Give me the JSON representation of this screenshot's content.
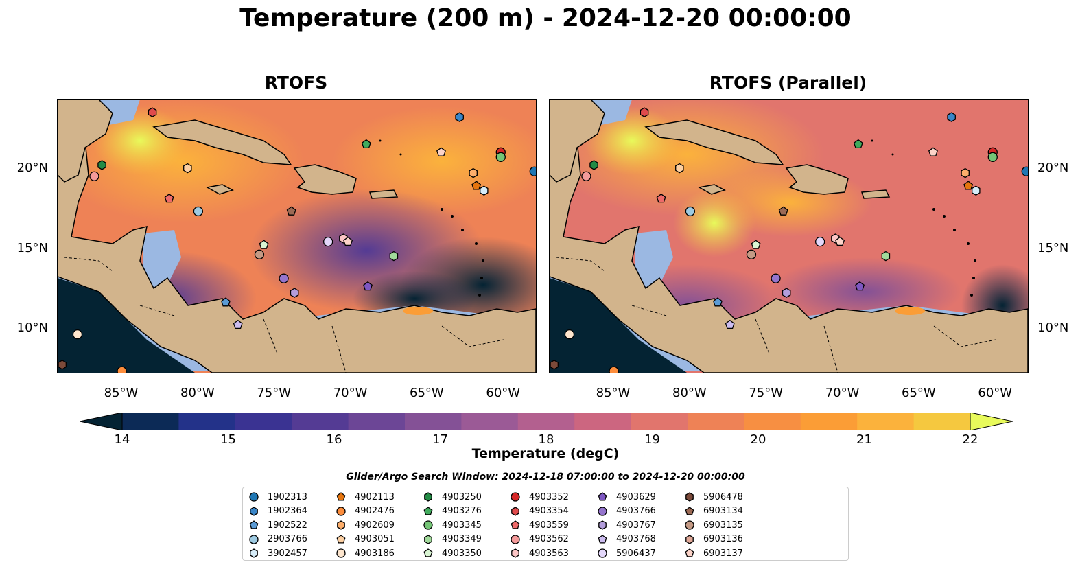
{
  "title": "Temperature (200 m) - 2024-12-20 00:00:00",
  "panels": [
    {
      "title": "RTOFS"
    },
    {
      "title": "RTOFS (Parallel)"
    }
  ],
  "map": {
    "lon_range": [
      -89.2,
      -57.9
    ],
    "lat_range": [
      7.3,
      24.4
    ],
    "lon_ticks": [
      "85°W",
      "80°W",
      "75°W",
      "70°W",
      "65°W",
      "60°W"
    ],
    "lon_tick_values": [
      -85,
      -80,
      -75,
      -70,
      -65,
      -60
    ],
    "lat_ticks": [
      "20°N",
      "15°N",
      "10°N"
    ],
    "lat_tick_values": [
      20,
      15,
      10
    ],
    "colors": {
      "land": "#d2b48c",
      "shelf": "#9bb8e2",
      "coast": "#000000"
    }
  },
  "colorbar": {
    "label": "Temperature (degC)",
    "min": 14,
    "max": 22,
    "ticks": [
      "14",
      "15",
      "16",
      "17",
      "18",
      "19",
      "20",
      "21",
      "22"
    ],
    "extend": "both",
    "colormap": [
      "#042333",
      "#0c2a56",
      "#233289",
      "#3a3392",
      "#543b94",
      "#6c4696",
      "#845196",
      "#9b5a96",
      "#b3608f",
      "#cc6680",
      "#e1756d",
      "#ee8256",
      "#f78f42",
      "#fb9d36",
      "#fbb23c",
      "#f5c83f",
      "#e8fa5b"
    ]
  },
  "search_window": "Glider/Argo Search Window: 2024-12-18 07:00:00 to 2024-12-20 00:00:00",
  "legend": [
    {
      "id": "1902313",
      "marker": "circle",
      "color": "#1f77b4"
    },
    {
      "id": "1902364",
      "marker": "hexagon",
      "color": "#3a86c8"
    },
    {
      "id": "1902522",
      "marker": "pentagon",
      "color": "#5b9bd5"
    },
    {
      "id": "2903766",
      "marker": "circle",
      "color": "#9ecae1"
    },
    {
      "id": "3902457",
      "marker": "hexagon",
      "color": "#d6ecf8"
    },
    {
      "id": "4902113",
      "marker": "pentagon",
      "color": "#e6750e"
    },
    {
      "id": "4902476",
      "marker": "circle",
      "color": "#fd8d3c"
    },
    {
      "id": "4902609",
      "marker": "hexagon",
      "color": "#fdae6b"
    },
    {
      "id": "4903051",
      "marker": "pentagon",
      "color": "#fdd0a2"
    },
    {
      "id": "4903186",
      "marker": "circle",
      "color": "#fee6ce"
    },
    {
      "id": "4903250",
      "marker": "hexagon",
      "color": "#238b45"
    },
    {
      "id": "4903276",
      "marker": "pentagon",
      "color": "#41ab5d"
    },
    {
      "id": "4903345",
      "marker": "circle",
      "color": "#74c476"
    },
    {
      "id": "4903349",
      "marker": "hexagon",
      "color": "#a1d99b"
    },
    {
      "id": "4903350",
      "marker": "pentagon",
      "color": "#d9f5d3"
    },
    {
      "id": "4903352",
      "marker": "circle",
      "color": "#d62728"
    },
    {
      "id": "4903354",
      "marker": "hexagon",
      "color": "#e04b4c"
    },
    {
      "id": "4903559",
      "marker": "pentagon",
      "color": "#ee6a6a"
    },
    {
      "id": "4903562",
      "marker": "circle",
      "color": "#f49a9a"
    },
    {
      "id": "4903563",
      "marker": "hexagon",
      "color": "#fcc5c5"
    },
    {
      "id": "4903629",
      "marker": "pentagon",
      "color": "#7e57c2"
    },
    {
      "id": "4903766",
      "marker": "circle",
      "color": "#9575cd"
    },
    {
      "id": "4903767",
      "marker": "hexagon",
      "color": "#b39ddb"
    },
    {
      "id": "4903768",
      "marker": "pentagon",
      "color": "#cdbdf0"
    },
    {
      "id": "5906437",
      "marker": "circle",
      "color": "#e3d7fa"
    },
    {
      "id": "5906478",
      "marker": "hexagon",
      "color": "#7b4a3a"
    },
    {
      "id": "6903134",
      "marker": "pentagon",
      "color": "#9c6a55"
    },
    {
      "id": "6903135",
      "marker": "circle",
      "color": "#c49a85"
    },
    {
      "id": "6903136",
      "marker": "hexagon",
      "color": "#e0a898"
    },
    {
      "id": "6903137",
      "marker": "pentagon",
      "color": "#fcd3c8"
    }
  ],
  "floats_panel1": [
    {
      "marker": "hexagon",
      "color": "#e04b4c",
      "lon": -83.0,
      "lat": 23.6
    },
    {
      "marker": "hexagon",
      "color": "#3a86c8",
      "lon": -62.9,
      "lat": 23.3
    },
    {
      "marker": "hexagon",
      "color": "#238b45",
      "lon": -86.3,
      "lat": 20.3
    },
    {
      "marker": "circle",
      "color": "#f49a9a",
      "lon": -86.8,
      "lat": 19.6
    },
    {
      "marker": "hexagon",
      "color": "#fdd0a2",
      "lon": -80.7,
      "lat": 20.1
    },
    {
      "marker": "pentagon",
      "color": "#41ab5d",
      "lon": -69.0,
      "lat": 21.6
    },
    {
      "marker": "pentagon",
      "color": "#fcd3c8",
      "lon": -64.1,
      "lat": 21.1
    },
    {
      "marker": "circle",
      "color": "#d62728",
      "lon": -60.2,
      "lat": 21.1
    },
    {
      "marker": "circle",
      "color": "#74c476",
      "lon": -60.2,
      "lat": 20.8
    },
    {
      "marker": "circle",
      "color": "#1f77b4",
      "lon": -58.0,
      "lat": 19.9
    },
    {
      "marker": "hexagon",
      "color": "#fdae6b",
      "lon": -62.0,
      "lat": 19.8
    },
    {
      "marker": "pentagon",
      "color": "#e6750e",
      "lon": -61.8,
      "lat": 19.0
    },
    {
      "marker": "hexagon",
      "color": "#d6ecf8",
      "lon": -61.3,
      "lat": 18.7
    },
    {
      "marker": "pentagon",
      "color": "#ee6a6a",
      "lon": -81.9,
      "lat": 18.2
    },
    {
      "marker": "circle",
      "color": "#9ecae1",
      "lon": -80.0,
      "lat": 17.4
    },
    {
      "marker": "pentagon",
      "color": "#9c6a55",
      "lon": -73.9,
      "lat": 17.4
    },
    {
      "marker": "circle",
      "color": "#e3d7fa",
      "lon": -71.5,
      "lat": 15.5
    },
    {
      "marker": "hexagon",
      "color": "#fcc5c5",
      "lon": -70.5,
      "lat": 15.7
    },
    {
      "marker": "pentagon",
      "color": "#fcd3c8",
      "lon": -70.2,
      "lat": 15.5
    },
    {
      "marker": "pentagon",
      "color": "#d9f5d3",
      "lon": -75.7,
      "lat": 15.3
    },
    {
      "marker": "circle",
      "color": "#c49a85",
      "lon": -76.0,
      "lat": 14.7
    },
    {
      "marker": "hexagon",
      "color": "#a1d99b",
      "lon": -67.2,
      "lat": 14.6
    },
    {
      "marker": "circle",
      "color": "#9575cd",
      "lon": -74.4,
      "lat": 13.2
    },
    {
      "marker": "hexagon",
      "color": "#b39ddb",
      "lon": -73.7,
      "lat": 12.3
    },
    {
      "marker": "pentagon",
      "color": "#7e57c2",
      "lon": -68.9,
      "lat": 12.7
    },
    {
      "marker": "pentagon",
      "color": "#5b9bd5",
      "lon": -78.2,
      "lat": 11.7
    },
    {
      "marker": "pentagon",
      "color": "#cdbdf0",
      "lon": -77.4,
      "lat": 10.3
    },
    {
      "marker": "circle",
      "color": "#fee6ce",
      "lon": -87.9,
      "lat": 9.7
    },
    {
      "marker": "hexagon",
      "color": "#7b4a3a",
      "lon": -88.9,
      "lat": 7.8
    },
    {
      "marker": "circle",
      "color": "#fd8d3c",
      "lon": -85.0,
      "lat": 7.4
    }
  ],
  "floats_panel2": [
    {
      "marker": "hexagon",
      "color": "#e04b4c",
      "lon": -83.0,
      "lat": 23.6
    },
    {
      "marker": "hexagon",
      "color": "#3a86c8",
      "lon": -62.9,
      "lat": 23.3
    },
    {
      "marker": "hexagon",
      "color": "#238b45",
      "lon": -86.3,
      "lat": 20.3
    },
    {
      "marker": "circle",
      "color": "#f49a9a",
      "lon": -86.8,
      "lat": 19.6
    },
    {
      "marker": "hexagon",
      "color": "#fdd0a2",
      "lon": -80.7,
      "lat": 20.1
    },
    {
      "marker": "pentagon",
      "color": "#41ab5d",
      "lon": -69.0,
      "lat": 21.6
    },
    {
      "marker": "pentagon",
      "color": "#fcd3c8",
      "lon": -64.1,
      "lat": 21.1
    },
    {
      "marker": "circle",
      "color": "#d62728",
      "lon": -60.2,
      "lat": 21.1
    },
    {
      "marker": "circle",
      "color": "#74c476",
      "lon": -60.2,
      "lat": 20.8
    },
    {
      "marker": "circle",
      "color": "#1f77b4",
      "lon": -58.0,
      "lat": 19.9
    },
    {
      "marker": "hexagon",
      "color": "#fdae6b",
      "lon": -62.0,
      "lat": 19.8
    },
    {
      "marker": "pentagon",
      "color": "#e6750e",
      "lon": -61.8,
      "lat": 19.0
    },
    {
      "marker": "hexagon",
      "color": "#d6ecf8",
      "lon": -61.3,
      "lat": 18.7
    },
    {
      "marker": "pentagon",
      "color": "#ee6a6a",
      "lon": -81.9,
      "lat": 18.2
    },
    {
      "marker": "circle",
      "color": "#9ecae1",
      "lon": -80.0,
      "lat": 17.4
    },
    {
      "marker": "pentagon",
      "color": "#9c6a55",
      "lon": -73.9,
      "lat": 17.4
    },
    {
      "marker": "circle",
      "color": "#e3d7fa",
      "lon": -71.5,
      "lat": 15.5
    },
    {
      "marker": "hexagon",
      "color": "#fcc5c5",
      "lon": -70.5,
      "lat": 15.7
    },
    {
      "marker": "pentagon",
      "color": "#fcd3c8",
      "lon": -70.2,
      "lat": 15.5
    },
    {
      "marker": "pentagon",
      "color": "#d9f5d3",
      "lon": -75.7,
      "lat": 15.3
    },
    {
      "marker": "circle",
      "color": "#c49a85",
      "lon": -76.0,
      "lat": 14.7
    },
    {
      "marker": "hexagon",
      "color": "#a1d99b",
      "lon": -67.2,
      "lat": 14.6
    },
    {
      "marker": "circle",
      "color": "#9575cd",
      "lon": -74.4,
      "lat": 13.2
    },
    {
      "marker": "hexagon",
      "color": "#b39ddb",
      "lon": -73.7,
      "lat": 12.3
    },
    {
      "marker": "pentagon",
      "color": "#7e57c2",
      "lon": -68.9,
      "lat": 12.7
    },
    {
      "marker": "pentagon",
      "color": "#5b9bd5",
      "lon": -78.2,
      "lat": 11.7
    },
    {
      "marker": "pentagon",
      "color": "#cdbdf0",
      "lon": -77.4,
      "lat": 10.3
    },
    {
      "marker": "circle",
      "color": "#fee6ce",
      "lon": -87.9,
      "lat": 9.7
    },
    {
      "marker": "hexagon",
      "color": "#7b4a3a",
      "lon": -88.9,
      "lat": 7.8
    },
    {
      "marker": "circle",
      "color": "#fd8d3c",
      "lon": -85.0,
      "lat": 7.4
    }
  ]
}
